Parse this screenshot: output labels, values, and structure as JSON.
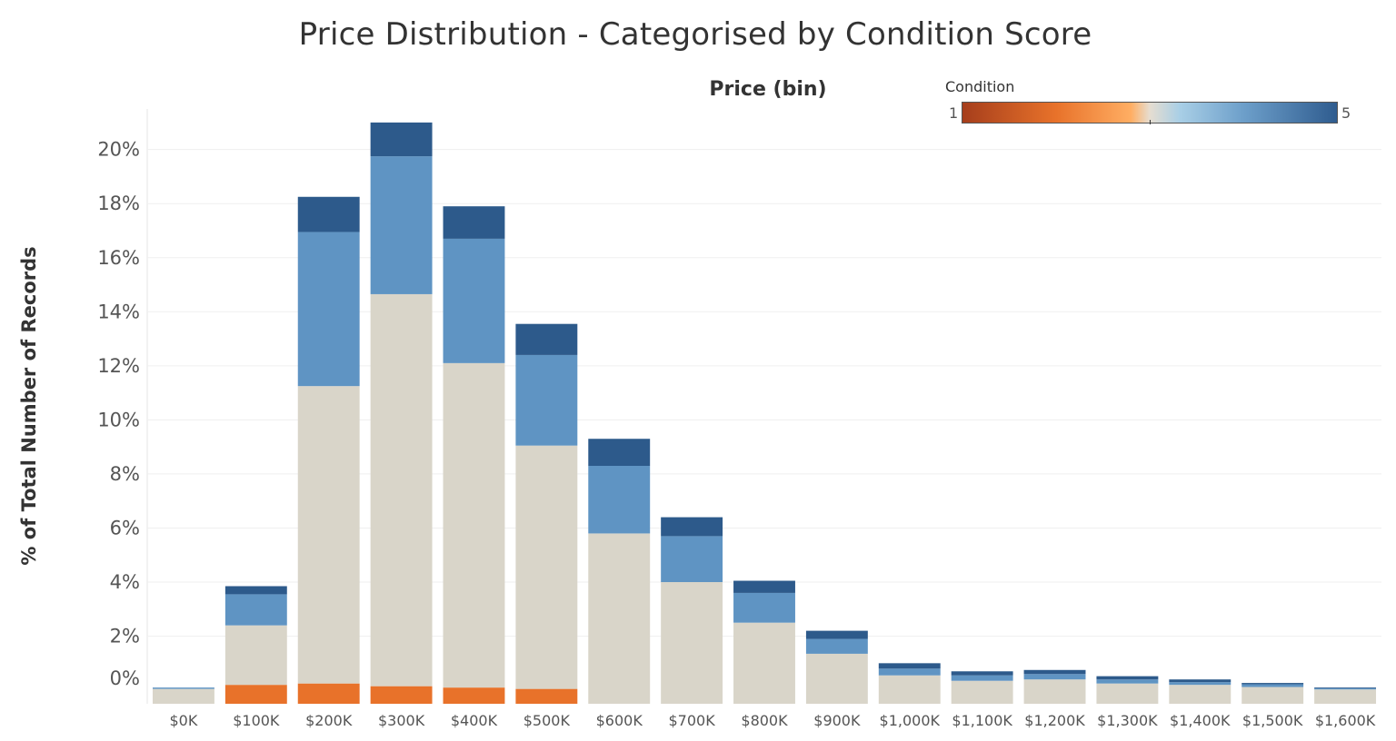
{
  "chart_data": {
    "type": "bar",
    "stacked": true,
    "title": "Price Distribution - Categorised by Condition Score",
    "xlabel": "Price (bin)",
    "ylabel": "% of Total Number of Records",
    "categories": [
      "$0K",
      "$100K",
      "$200K",
      "$300K",
      "$400K",
      "$500K",
      "$600K",
      "$700K",
      "$800K",
      "$900K",
      "$1,000K",
      "$1,100K",
      "$1,200K",
      "$1,300K",
      "$1,400K",
      "$1,500K",
      "$1,600K"
    ],
    "yticks": [
      "0%",
      "2%",
      "4%",
      "6%",
      "8%",
      "10%",
      "12%",
      "14%",
      "16%",
      "18%",
      "20%"
    ],
    "ylim": [
      -0.5,
      21.5
    ],
    "grid": true,
    "series": [
      {
        "condition": 2,
        "color": "#e8722a",
        "values": [
          0.0,
          0.2,
          0.25,
          0.15,
          0.1,
          0.05,
          0,
          0,
          0,
          0,
          0,
          0,
          0,
          0,
          0,
          0,
          0
        ]
      },
      {
        "condition": 3,
        "color": "#d9d5c9",
        "values": [
          0.05,
          2.2,
          11.0,
          14.5,
          12.0,
          9.0,
          5.8,
          4.0,
          2.5,
          1.35,
          0.55,
          0.35,
          0.4,
          0.25,
          0.2,
          0.12,
          0.03
        ]
      },
      {
        "condition": 4,
        "color": "#5f94c3",
        "values": [
          0.05,
          1.15,
          5.7,
          5.1,
          4.6,
          3.35,
          2.5,
          1.7,
          1.1,
          0.55,
          0.25,
          0.2,
          0.2,
          0.15,
          0.1,
          0.1,
          0.04
        ]
      },
      {
        "condition": 5,
        "color": "#2d5a8b",
        "values": [
          0.0,
          0.3,
          1.3,
          1.25,
          1.2,
          1.15,
          1.0,
          0.7,
          0.45,
          0.3,
          0.2,
          0.15,
          0.15,
          0.12,
          0.1,
          0.05,
          0.03
        ]
      }
    ],
    "legend": {
      "title": "Condition",
      "min_label": "1",
      "max_label": "5",
      "placement": "top-right",
      "type": "continuous-diverging"
    }
  }
}
